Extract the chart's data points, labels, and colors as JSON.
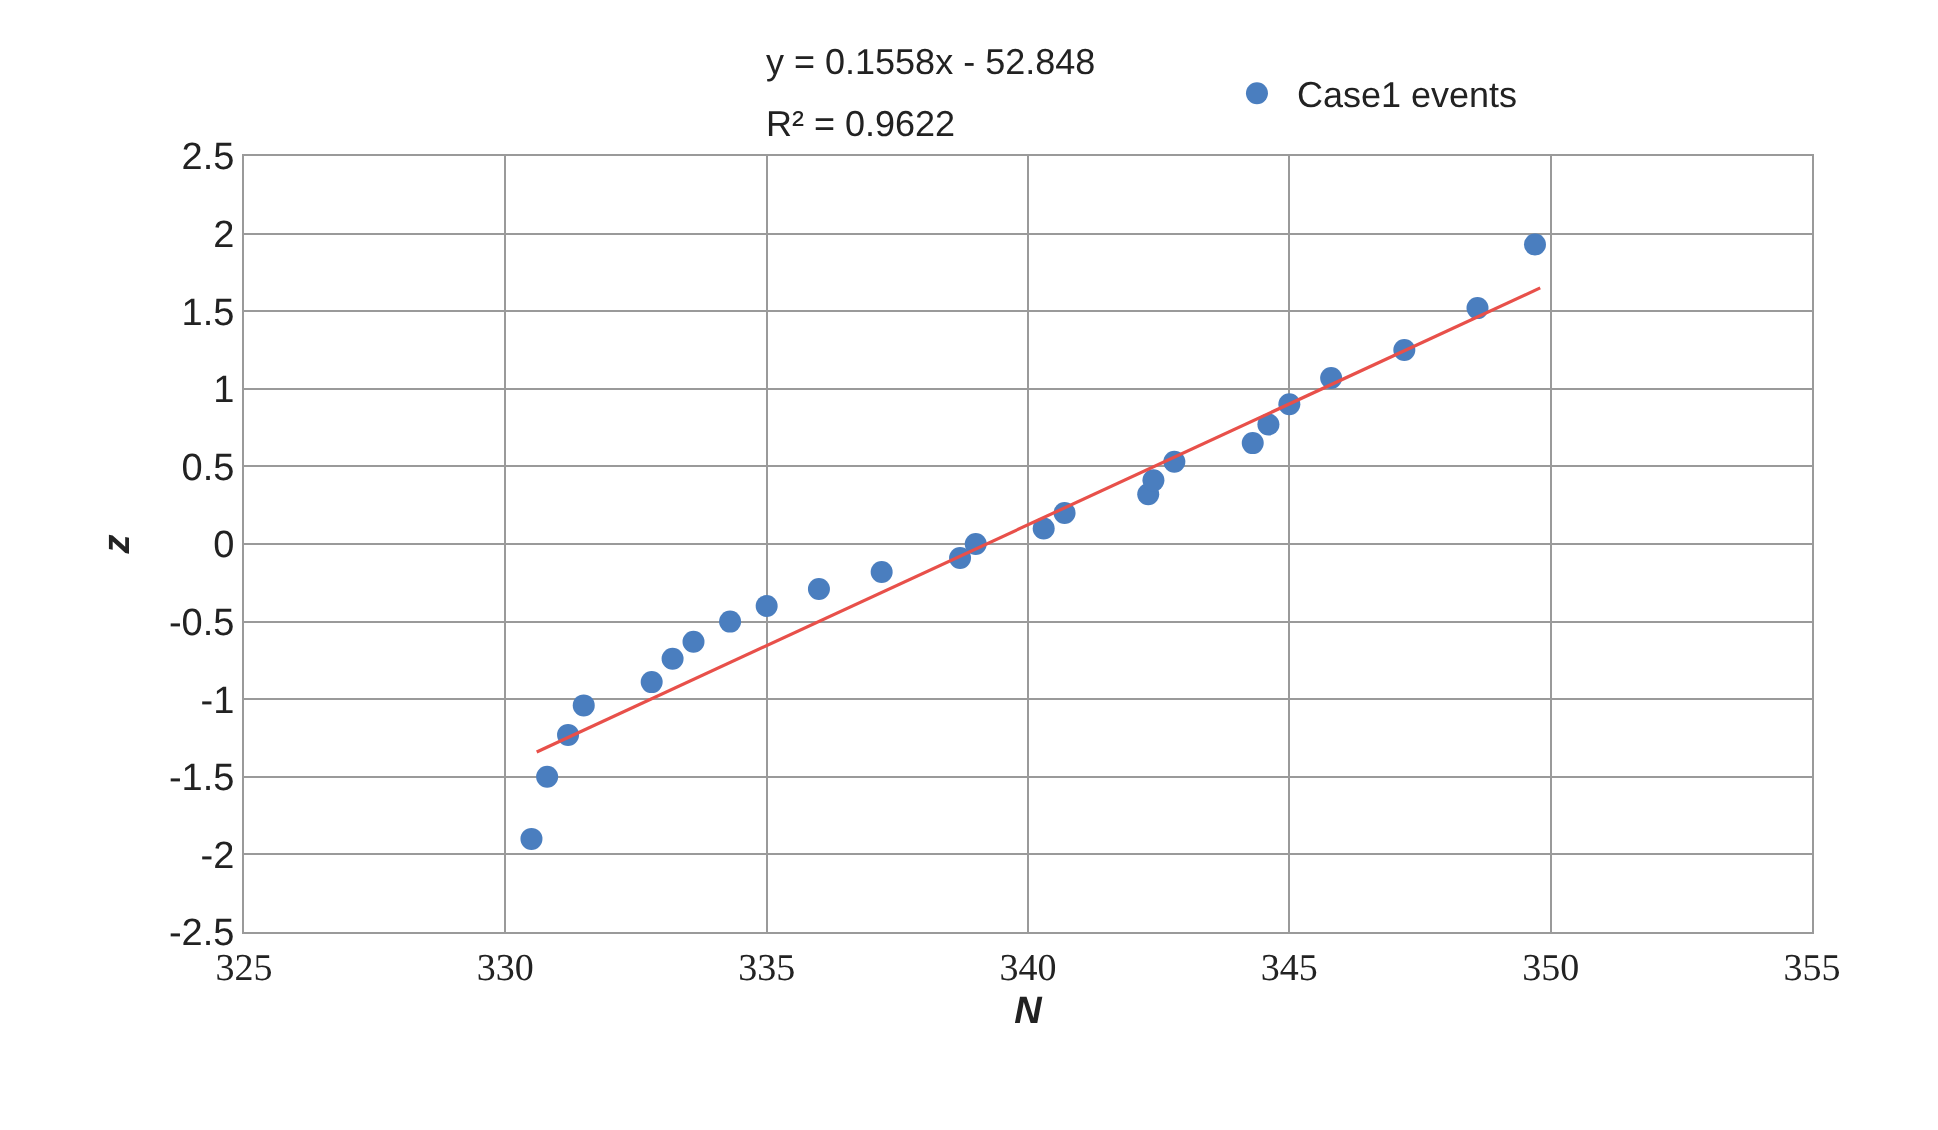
{
  "chart_data": {
    "type": "scatter",
    "xlabel": "N",
    "ylabel": "z",
    "annotations": [
      "y = 0.1558x - 52.848",
      "R² = 0.9622"
    ],
    "series": [
      {
        "name": "Case1 events",
        "color": "#4a7ebf",
        "marker": "circle",
        "x": [
          330.5,
          330.8,
          331.2,
          331.5,
          332.8,
          333.2,
          333.6,
          334.3,
          335.0,
          336.0,
          337.2,
          338.7,
          339.0,
          340.3,
          340.7,
          342.3,
          342.4,
          342.8,
          344.3,
          344.6,
          345.0,
          345.8,
          347.2,
          348.6,
          349.7
        ],
        "values": [
          -1.9,
          -1.5,
          -1.23,
          -1.04,
          -0.89,
          -0.74,
          -0.63,
          -0.5,
          -0.4,
          -0.29,
          -0.18,
          -0.09,
          0.0,
          0.1,
          0.2,
          0.32,
          0.41,
          0.53,
          0.65,
          0.77,
          0.9,
          1.07,
          1.25,
          1.52,
          1.93
        ]
      },
      {
        "type": "line",
        "color": "#e8504a",
        "marker": "none",
        "x": [
          330.6,
          349.8
        ],
        "values": [
          -1.34,
          1.65
        ]
      }
    ],
    "xlim": [
      325,
      355
    ],
    "xticks": [
      325,
      330,
      335,
      340,
      345,
      350,
      355
    ],
    "ylim": [
      -2.5,
      2.5
    ],
    "yticks": [
      -2.5,
      -2,
      -1.5,
      -1,
      -0.5,
      0,
      0.5,
      1,
      1.5,
      2,
      2.5
    ],
    "grid": true,
    "legend": "top"
  }
}
